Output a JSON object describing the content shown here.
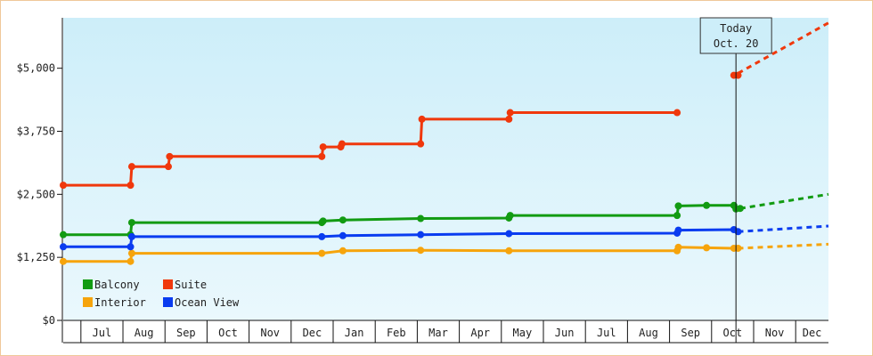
{
  "chart_data": {
    "type": "line",
    "ylim": [
      0,
      6000
    ],
    "y_ticks": [
      {
        "value": 0,
        "label": "$0"
      },
      {
        "value": 1250,
        "label": "$1,250"
      },
      {
        "value": 2500,
        "label": "$2,500"
      },
      {
        "value": 3750,
        "label": "$3,750"
      },
      {
        "value": 5000,
        "label": "$5,000"
      }
    ],
    "x_range": [
      0,
      18.2
    ],
    "month_labels": [
      "Jul",
      "Aug",
      "Sep",
      "Oct",
      "Nov",
      "Dec",
      "Jan",
      "Feb",
      "Mar",
      "Apr",
      "May",
      "Jun",
      "Jul",
      "Aug",
      "Sep",
      "Oct",
      "Nov",
      "Dec"
    ],
    "today": {
      "x": 16.0,
      "line1": "Today",
      "line2": "Oct. 20"
    },
    "legend_position": "bottom-left",
    "grid": false,
    "colors": {
      "background_top": "#cdeef9",
      "background_bottom": "#eaf8fd",
      "frame": "#f0c89a"
    },
    "series": [
      {
        "name": "Balcony",
        "color": "#129b12",
        "points": [
          [
            0,
            1700
          ],
          [
            1.6,
            1700
          ],
          [
            1.63,
            1940
          ],
          [
            6.15,
            1940
          ],
          [
            6.18,
            1970
          ],
          [
            6.65,
            1990
          ],
          [
            8.5,
            2020
          ],
          [
            10.6,
            2030
          ],
          [
            10.63,
            2080
          ],
          [
            14.6,
            2080
          ],
          [
            14.63,
            2270
          ],
          [
            15.3,
            2280
          ],
          [
            15.95,
            2280
          ],
          [
            16.0,
            2210
          ],
          [
            16.1,
            2220
          ]
        ],
        "projection": [
          [
            16.1,
            2220
          ],
          [
            18.2,
            2500
          ]
        ]
      },
      {
        "name": "Suite",
        "color": "#f0380c",
        "points": [
          [
            0,
            2680
          ],
          [
            1.6,
            2680
          ],
          [
            1.63,
            3050
          ],
          [
            2.5,
            3050
          ],
          [
            2.53,
            3250
          ],
          [
            6.15,
            3250
          ],
          [
            6.18,
            3440
          ],
          [
            6.6,
            3440
          ],
          [
            6.63,
            3500
          ],
          [
            8.5,
            3500
          ],
          [
            8.53,
            3990
          ],
          [
            10.6,
            3990
          ],
          [
            10.63,
            4120
          ],
          [
            14.6,
            4120
          ]
        ],
        "projection": [
          [
            16.05,
            4900
          ],
          [
            18.2,
            5900
          ]
        ],
        "today_points": [
          [
            15.95,
            4860
          ],
          [
            16.05,
            4860
          ]
        ]
      },
      {
        "name": "Interior",
        "color": "#f6a40c",
        "points": [
          [
            0,
            1170
          ],
          [
            1.6,
            1170
          ],
          [
            1.63,
            1330
          ],
          [
            6.15,
            1330
          ],
          [
            6.65,
            1380
          ],
          [
            8.5,
            1390
          ],
          [
            10.6,
            1380
          ],
          [
            14.6,
            1380
          ],
          [
            14.63,
            1450
          ],
          [
            15.3,
            1440
          ],
          [
            15.95,
            1430
          ],
          [
            16.05,
            1430
          ]
        ],
        "projection": [
          [
            16.05,
            1430
          ],
          [
            18.2,
            1510
          ]
        ]
      },
      {
        "name": "Ocean View",
        "color": "#0a3cf0",
        "points": [
          [
            0,
            1460
          ],
          [
            1.6,
            1460
          ],
          [
            1.63,
            1660
          ],
          [
            6.15,
            1660
          ],
          [
            6.65,
            1680
          ],
          [
            8.5,
            1700
          ],
          [
            10.6,
            1720
          ],
          [
            14.6,
            1730
          ],
          [
            14.63,
            1790
          ],
          [
            15.95,
            1800
          ],
          [
            16.05,
            1760
          ]
        ],
        "projection": [
          [
            16.05,
            1760
          ],
          [
            18.2,
            1870
          ]
        ]
      }
    ]
  }
}
